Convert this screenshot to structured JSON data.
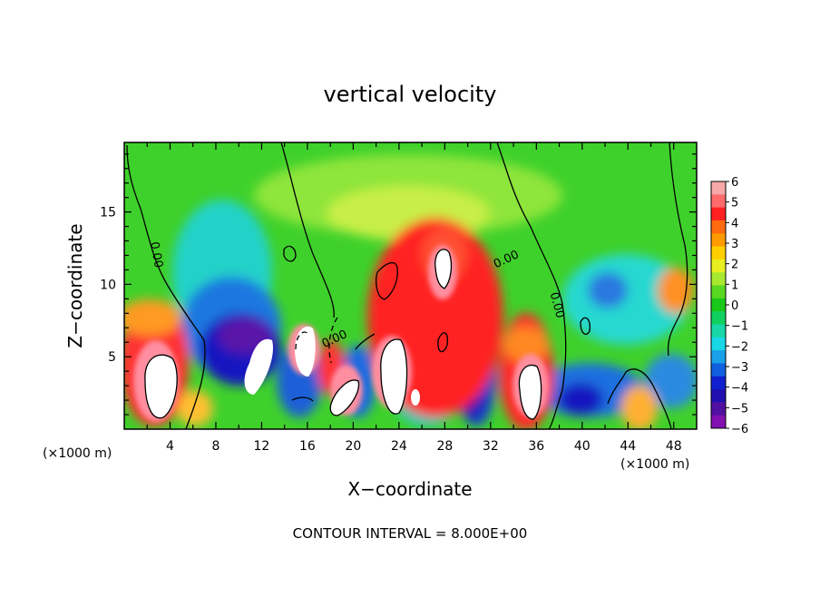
{
  "chart_data": {
    "type": "heatmap",
    "title": "vertical velocity",
    "xlabel": "X−coordinate",
    "ylabel": "Z−coordinate",
    "x_unit_left": "(×1000 m)",
    "x_unit_right": "(×1000 m)",
    "xlim": [
      0,
      50
    ],
    "ylim": [
      0,
      19.8
    ],
    "x_ticks": [
      4,
      8,
      12,
      16,
      20,
      24,
      28,
      32,
      36,
      40,
      44,
      48
    ],
    "y_ticks": [
      5,
      10,
      15
    ],
    "colorbar": {
      "ticks": [
        6,
        5,
        4,
        3,
        2,
        1,
        0,
        -1,
        -2,
        -3,
        -4,
        -5,
        -6
      ],
      "tick_labels": [
        "6",
        "5",
        "4",
        "3",
        "2",
        "1",
        "0",
        "−1",
        "−2",
        "−3",
        "−4",
        "−5",
        "−6"
      ],
      "range": [
        -6,
        6
      ]
    },
    "contour_labels": [
      {
        "text": "0.00",
        "x": 2.5,
        "y": 12
      },
      {
        "text": "0.00",
        "x": 18.5,
        "y": 6
      },
      {
        "text": "0.00",
        "x": 33.5,
        "y": 11.5
      },
      {
        "text": "0.00",
        "x": 37.5,
        "y": 8.5
      }
    ],
    "features": [
      {
        "kind": "updraft",
        "x": 3.5,
        "z": 3.2,
        "max": 8
      },
      {
        "kind": "updraft",
        "x": 24.0,
        "z": 4.0,
        "max": 8
      },
      {
        "kind": "updraft",
        "x": 28.0,
        "z": 11.5,
        "max": 7
      },
      {
        "kind": "updraft",
        "x": 35.5,
        "z": 2.8,
        "max": 8
      },
      {
        "kind": "updraft",
        "x": 19.0,
        "z": 2.5,
        "max": 7
      },
      {
        "kind": "updraft",
        "x": 15.5,
        "z": 5.5,
        "max": 7
      },
      {
        "kind": "updraft",
        "x": 12.0,
        "z": 5.0,
        "max": 6
      },
      {
        "kind": "downdraft",
        "x": 10.5,
        "z": 6.5,
        "min": -6
      },
      {
        "kind": "downdraft",
        "x": 31.0,
        "z": 3.0,
        "min": -5
      },
      {
        "kind": "downdraft",
        "x": 41.5,
        "z": 2.5,
        "min": -5
      }
    ],
    "footer": "CONTOUR INTERVAL = 8.000E+00"
  }
}
